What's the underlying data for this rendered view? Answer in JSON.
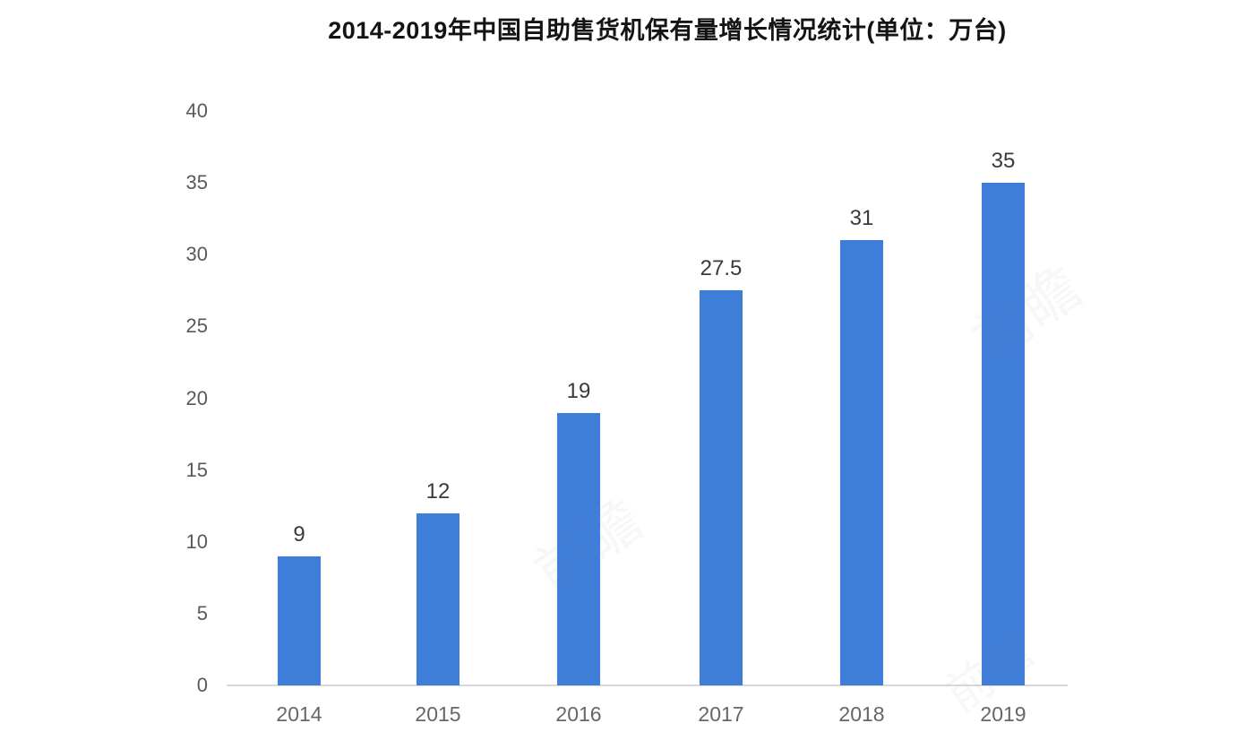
{
  "chart_data": {
    "type": "bar",
    "title": "2014-2019年中国自助售货机保有量增长情况统计(单位：万台)",
    "categories": [
      "2014",
      "2015",
      "2016",
      "2017",
      "2018",
      "2019"
    ],
    "values": [
      9,
      12,
      19,
      27.5,
      31,
      35
    ],
    "value_labels": [
      "9",
      "12",
      "19",
      "27.5",
      "31",
      "35"
    ],
    "yticks": [
      0,
      5,
      10,
      15,
      20,
      25,
      30,
      35,
      40
    ],
    "ylim": [
      0,
      40
    ],
    "xlabel": "",
    "ylabel": "",
    "grid": "off",
    "legend": "none",
    "bar_color": "#3e7ed9",
    "axis_line_color": "#d9d9d9",
    "tick_label_color": "#595959",
    "value_label_color": "#3a3a3a",
    "title_color": "#141414",
    "background_color": "#ffffff"
  },
  "watermark": {
    "text": "前瞻"
  }
}
